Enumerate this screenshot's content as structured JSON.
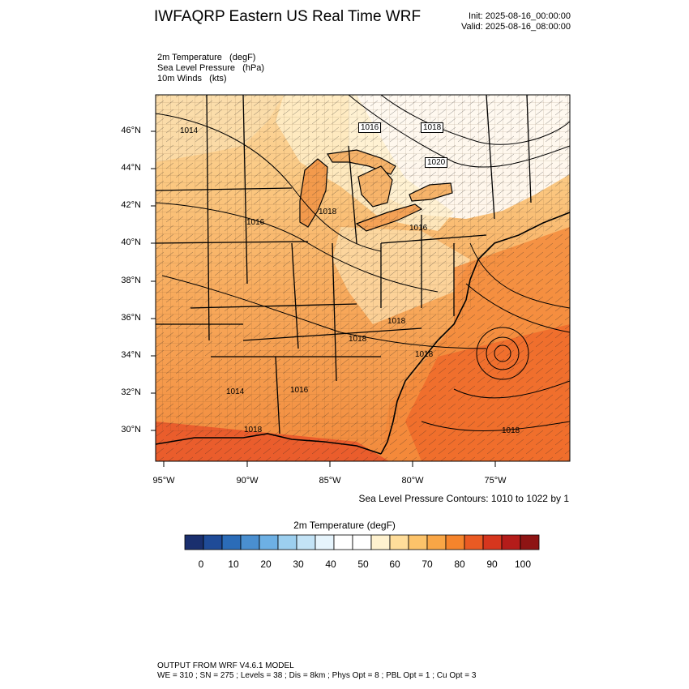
{
  "header": {
    "title": "IWFAQRP Eastern US Real Time WRF",
    "init": "Init: 2025-08-16_00:00:00",
    "valid": "Valid: 2025-08-16_08:00:00"
  },
  "variables": [
    "2m Temperature   (degF)",
    "Sea Level Pressure   (hPa)",
    "10m Winds   (kts)"
  ],
  "map": {
    "lat_labels": [
      "46°N",
      "44°N",
      "42°N",
      "40°N",
      "38°N",
      "36°N",
      "34°N",
      "32°N",
      "30°N"
    ],
    "lon_labels": [
      "95°W",
      "90°W",
      "85°W",
      "80°W",
      "75°W"
    ],
    "isobar_labels": [
      "1014",
      "1016",
      "1018",
      "1020",
      "1018",
      "1016",
      "1016",
      "1018",
      "1018",
      "1018",
      "1014",
      "1016",
      "1018",
      "1018"
    ],
    "low_center_label": "1014"
  },
  "contour_note": "Sea Level Pressure Contours: 1010 to 1022 by 1",
  "colorbar": {
    "title": "2m Temperature  (degF)",
    "ticks": [
      "0",
      "10",
      "20",
      "30",
      "40",
      "50",
      "60",
      "70",
      "80",
      "90",
      "100"
    ],
    "colors": [
      "#1a2f6e",
      "#1f4b98",
      "#2b6cb8",
      "#4a8fd0",
      "#6db0e4",
      "#9ccfef",
      "#c3e3f6",
      "#e6f4fc",
      "#ffffff",
      "#ffffff",
      "#fff2cf",
      "#ffdd9a",
      "#fcc36a",
      "#f9a646",
      "#f5842c",
      "#ea5a23",
      "#d6361e",
      "#b41c1a",
      "#8e1414"
    ]
  },
  "footer": {
    "line1": "OUTPUT FROM WRF V4.6.1 MODEL",
    "line2": "WE = 310 ; SN = 275 ; Levels = 38 ; Dis = 8km ; Phys Opt = 8 ; PBL Opt = 1 ; Cu Opt = 3"
  }
}
